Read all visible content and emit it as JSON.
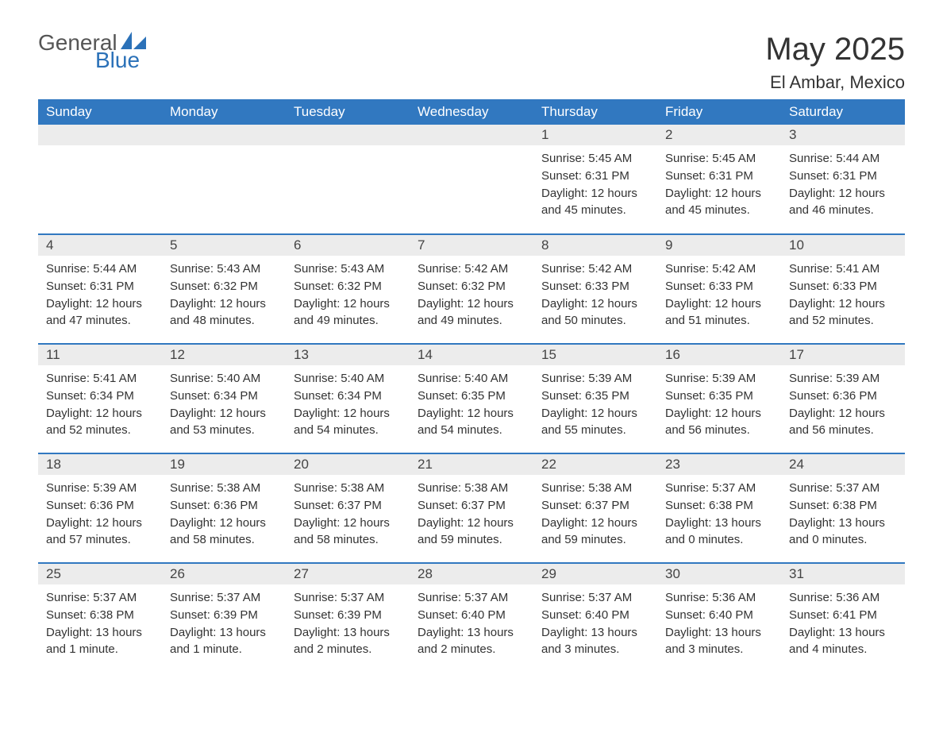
{
  "logo": {
    "text_general": "General",
    "text_blue": "Blue",
    "sail_color": "#2b71b8"
  },
  "header": {
    "month_title": "May 2025",
    "location": "El Ambar, Mexico",
    "title_fontsize": 40,
    "location_fontsize": 22
  },
  "style": {
    "header_bg": "#3178c0",
    "header_text": "#ffffff",
    "daynum_bg": "#ececec",
    "daynum_text": "#444444",
    "body_text": "#333333",
    "row_border": "#3178c0",
    "page_bg": "#ffffff",
    "body_fontsize": 15,
    "weekday_fontsize": 17
  },
  "calendar": {
    "weekdays": [
      "Sunday",
      "Monday",
      "Tuesday",
      "Wednesday",
      "Thursday",
      "Friday",
      "Saturday"
    ],
    "weeks": [
      [
        null,
        null,
        null,
        null,
        {
          "n": "1",
          "sunrise": "Sunrise: 5:45 AM",
          "sunset": "Sunset: 6:31 PM",
          "daylight": "Daylight: 12 hours and 45 minutes."
        },
        {
          "n": "2",
          "sunrise": "Sunrise: 5:45 AM",
          "sunset": "Sunset: 6:31 PM",
          "daylight": "Daylight: 12 hours and 45 minutes."
        },
        {
          "n": "3",
          "sunrise": "Sunrise: 5:44 AM",
          "sunset": "Sunset: 6:31 PM",
          "daylight": "Daylight: 12 hours and 46 minutes."
        }
      ],
      [
        {
          "n": "4",
          "sunrise": "Sunrise: 5:44 AM",
          "sunset": "Sunset: 6:31 PM",
          "daylight": "Daylight: 12 hours and 47 minutes."
        },
        {
          "n": "5",
          "sunrise": "Sunrise: 5:43 AM",
          "sunset": "Sunset: 6:32 PM",
          "daylight": "Daylight: 12 hours and 48 minutes."
        },
        {
          "n": "6",
          "sunrise": "Sunrise: 5:43 AM",
          "sunset": "Sunset: 6:32 PM",
          "daylight": "Daylight: 12 hours and 49 minutes."
        },
        {
          "n": "7",
          "sunrise": "Sunrise: 5:42 AM",
          "sunset": "Sunset: 6:32 PM",
          "daylight": "Daylight: 12 hours and 49 minutes."
        },
        {
          "n": "8",
          "sunrise": "Sunrise: 5:42 AM",
          "sunset": "Sunset: 6:33 PM",
          "daylight": "Daylight: 12 hours and 50 minutes."
        },
        {
          "n": "9",
          "sunrise": "Sunrise: 5:42 AM",
          "sunset": "Sunset: 6:33 PM",
          "daylight": "Daylight: 12 hours and 51 minutes."
        },
        {
          "n": "10",
          "sunrise": "Sunrise: 5:41 AM",
          "sunset": "Sunset: 6:33 PM",
          "daylight": "Daylight: 12 hours and 52 minutes."
        }
      ],
      [
        {
          "n": "11",
          "sunrise": "Sunrise: 5:41 AM",
          "sunset": "Sunset: 6:34 PM",
          "daylight": "Daylight: 12 hours and 52 minutes."
        },
        {
          "n": "12",
          "sunrise": "Sunrise: 5:40 AM",
          "sunset": "Sunset: 6:34 PM",
          "daylight": "Daylight: 12 hours and 53 minutes."
        },
        {
          "n": "13",
          "sunrise": "Sunrise: 5:40 AM",
          "sunset": "Sunset: 6:34 PM",
          "daylight": "Daylight: 12 hours and 54 minutes."
        },
        {
          "n": "14",
          "sunrise": "Sunrise: 5:40 AM",
          "sunset": "Sunset: 6:35 PM",
          "daylight": "Daylight: 12 hours and 54 minutes."
        },
        {
          "n": "15",
          "sunrise": "Sunrise: 5:39 AM",
          "sunset": "Sunset: 6:35 PM",
          "daylight": "Daylight: 12 hours and 55 minutes."
        },
        {
          "n": "16",
          "sunrise": "Sunrise: 5:39 AM",
          "sunset": "Sunset: 6:35 PM",
          "daylight": "Daylight: 12 hours and 56 minutes."
        },
        {
          "n": "17",
          "sunrise": "Sunrise: 5:39 AM",
          "sunset": "Sunset: 6:36 PM",
          "daylight": "Daylight: 12 hours and 56 minutes."
        }
      ],
      [
        {
          "n": "18",
          "sunrise": "Sunrise: 5:39 AM",
          "sunset": "Sunset: 6:36 PM",
          "daylight": "Daylight: 12 hours and 57 minutes."
        },
        {
          "n": "19",
          "sunrise": "Sunrise: 5:38 AM",
          "sunset": "Sunset: 6:36 PM",
          "daylight": "Daylight: 12 hours and 58 minutes."
        },
        {
          "n": "20",
          "sunrise": "Sunrise: 5:38 AM",
          "sunset": "Sunset: 6:37 PM",
          "daylight": "Daylight: 12 hours and 58 minutes."
        },
        {
          "n": "21",
          "sunrise": "Sunrise: 5:38 AM",
          "sunset": "Sunset: 6:37 PM",
          "daylight": "Daylight: 12 hours and 59 minutes."
        },
        {
          "n": "22",
          "sunrise": "Sunrise: 5:38 AM",
          "sunset": "Sunset: 6:37 PM",
          "daylight": "Daylight: 12 hours and 59 minutes."
        },
        {
          "n": "23",
          "sunrise": "Sunrise: 5:37 AM",
          "sunset": "Sunset: 6:38 PM",
          "daylight": "Daylight: 13 hours and 0 minutes."
        },
        {
          "n": "24",
          "sunrise": "Sunrise: 5:37 AM",
          "sunset": "Sunset: 6:38 PM",
          "daylight": "Daylight: 13 hours and 0 minutes."
        }
      ],
      [
        {
          "n": "25",
          "sunrise": "Sunrise: 5:37 AM",
          "sunset": "Sunset: 6:38 PM",
          "daylight": "Daylight: 13 hours and 1 minute."
        },
        {
          "n": "26",
          "sunrise": "Sunrise: 5:37 AM",
          "sunset": "Sunset: 6:39 PM",
          "daylight": "Daylight: 13 hours and 1 minute."
        },
        {
          "n": "27",
          "sunrise": "Sunrise: 5:37 AM",
          "sunset": "Sunset: 6:39 PM",
          "daylight": "Daylight: 13 hours and 2 minutes."
        },
        {
          "n": "28",
          "sunrise": "Sunrise: 5:37 AM",
          "sunset": "Sunset: 6:40 PM",
          "daylight": "Daylight: 13 hours and 2 minutes."
        },
        {
          "n": "29",
          "sunrise": "Sunrise: 5:37 AM",
          "sunset": "Sunset: 6:40 PM",
          "daylight": "Daylight: 13 hours and 3 minutes."
        },
        {
          "n": "30",
          "sunrise": "Sunrise: 5:36 AM",
          "sunset": "Sunset: 6:40 PM",
          "daylight": "Daylight: 13 hours and 3 minutes."
        },
        {
          "n": "31",
          "sunrise": "Sunrise: 5:36 AM",
          "sunset": "Sunset: 6:41 PM",
          "daylight": "Daylight: 13 hours and 4 minutes."
        }
      ]
    ]
  }
}
